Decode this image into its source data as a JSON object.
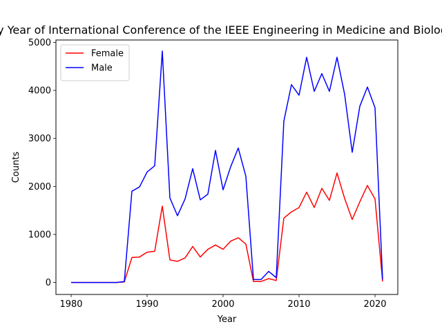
{
  "chart_data": {
    "type": "line",
    "title": "Authors by Year of International Conference of the IEEE Engineering in Medicine and Biology Society",
    "xlabel": "Year",
    "ylabel": "Counts",
    "xlim": [
      1978,
      2023
    ],
    "ylim": [
      -250,
      5050
    ],
    "xticks": [
      1980,
      1990,
      2000,
      2010,
      2020
    ],
    "yticks": [
      0,
      1000,
      2000,
      3000,
      4000,
      5000
    ],
    "grid": false,
    "legend_position": "top-left",
    "series": [
      {
        "name": "Female",
        "color": "#ff0000",
        "x": [
          1980,
          1981,
          1982,
          1983,
          1984,
          1985,
          1986,
          1987,
          1988,
          1989,
          1990,
          1991,
          1992,
          1993,
          1994,
          1995,
          1996,
          1997,
          1998,
          1999,
          2000,
          2001,
          2002,
          2003,
          2004,
          2005,
          2006,
          2007,
          2008,
          2009,
          2010,
          2011,
          2012,
          2013,
          2014,
          2015,
          2016,
          2017,
          2018,
          2019,
          2020,
          2021
        ],
        "values": [
          0,
          0,
          0,
          0,
          0,
          0,
          0,
          10,
          520,
          530,
          630,
          650,
          1590,
          470,
          440,
          510,
          750,
          530,
          690,
          780,
          690,
          860,
          930,
          800,
          20,
          20,
          80,
          40,
          1340,
          1470,
          1560,
          1880,
          1560,
          1960,
          1710,
          2280,
          1750,
          1310,
          1680,
          2020,
          1740,
          20
        ]
      },
      {
        "name": "Male",
        "color": "#0000ff",
        "x": [
          1980,
          1981,
          1982,
          1983,
          1984,
          1985,
          1986,
          1987,
          1988,
          1989,
          1990,
          1991,
          1992,
          1993,
          1994,
          1995,
          1996,
          1997,
          1998,
          1999,
          2000,
          2001,
          2002,
          2003,
          2004,
          2005,
          2006,
          2007,
          2008,
          2009,
          2010,
          2011,
          2012,
          2013,
          2014,
          2015,
          2016,
          2017,
          2018,
          2019,
          2020,
          2021
        ],
        "values": [
          0,
          0,
          0,
          0,
          0,
          0,
          0,
          20,
          1900,
          1990,
          2300,
          2430,
          4820,
          1760,
          1390,
          1740,
          2370,
          1720,
          1840,
          2750,
          1930,
          2410,
          2800,
          2210,
          60,
          60,
          230,
          100,
          3360,
          4120,
          3900,
          4690,
          3980,
          4350,
          3980,
          4690,
          3920,
          2710,
          3670,
          4070,
          3640,
          60
        ]
      }
    ]
  }
}
